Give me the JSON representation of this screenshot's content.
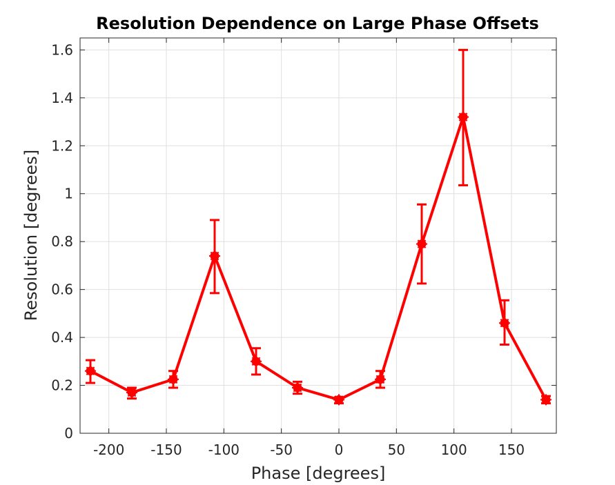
{
  "chart_data": {
    "type": "line",
    "title": "Resolution Dependence on Large Phase Offsets",
    "xlabel": "Phase [degrees]",
    "ylabel": "Resolution [degrees]",
    "xlim": [
      -225,
      189
    ],
    "ylim": [
      0,
      1.65
    ],
    "xticks": [
      -200,
      -150,
      -100,
      -50,
      0,
      50,
      100,
      150
    ],
    "yticks": [
      0,
      0.2,
      0.4,
      0.6,
      0.8,
      1,
      1.2,
      1.4,
      1.6
    ],
    "grid": true,
    "series": [
      {
        "color": "#ff0000",
        "marker": "asterisk-circle",
        "x": [
          -216,
          -180,
          -144,
          -108,
          -72,
          -36,
          0,
          36,
          72,
          108,
          144,
          180
        ],
        "y": [
          0.26,
          0.17,
          0.225,
          0.74,
          0.3,
          0.19,
          0.14,
          0.225,
          0.79,
          1.32,
          0.46,
          0.14
        ],
        "error_low": [
          0.21,
          0.145,
          0.19,
          0.585,
          0.245,
          0.165,
          0.125,
          0.19,
          0.625,
          1.035,
          0.37,
          0.125
        ],
        "error_high": [
          0.305,
          0.19,
          0.26,
          0.89,
          0.355,
          0.215,
          0.15,
          0.26,
          0.955,
          1.6,
          0.555,
          0.155
        ]
      }
    ]
  }
}
